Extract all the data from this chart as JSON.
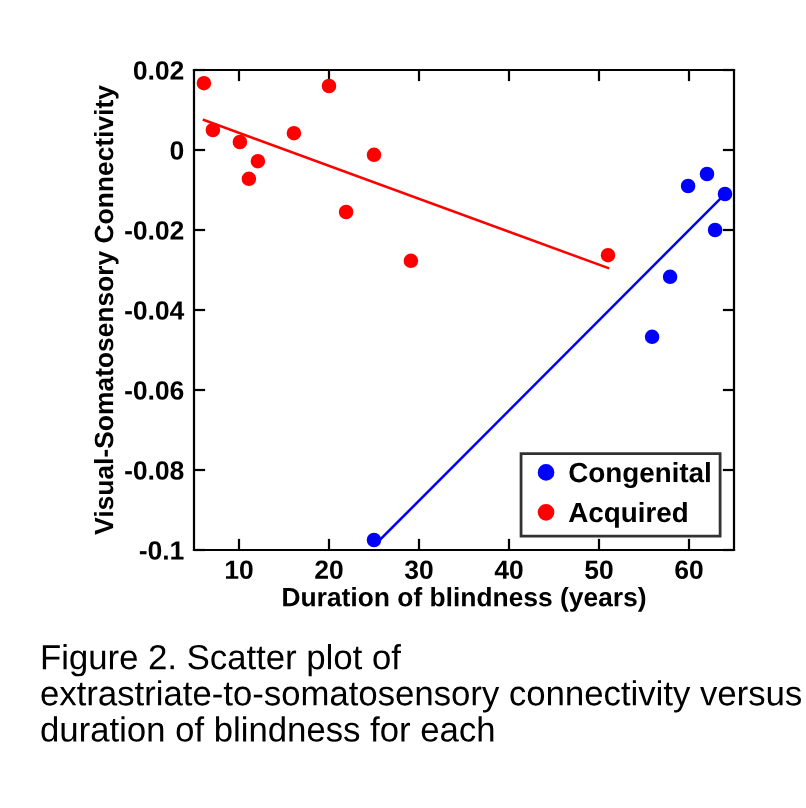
{
  "chart_data": {
    "type": "scatter",
    "xlabel": "Duration of blindness (years)",
    "ylabel": "Visual-Somatosensory Connectivity",
    "xlim": [
      5,
      65
    ],
    "ylim": [
      -0.1,
      0.02
    ],
    "xticks": [
      10,
      20,
      30,
      40,
      50,
      60
    ],
    "yticks": [
      0.02,
      0,
      -0.02,
      -0.04,
      -0.06,
      -0.08,
      -0.1
    ],
    "marker": "circle",
    "legend": "bottom right",
    "grid": false,
    "series": [
      {
        "name": "Congenital",
        "color": "#0000ff",
        "x": [
          25.0,
          55.9,
          57.9,
          59.9,
          62.0,
          62.9,
          64.0
        ],
        "values": [
          -0.0975,
          -0.0467,
          -0.0317,
          -0.009,
          -0.006,
          -0.02,
          -0.011
        ]
      },
      {
        "name": "Acquired",
        "color": "#ff0000",
        "x": [
          6.1,
          7.1,
          10.1,
          11.1,
          12.1,
          16.1,
          20.0,
          21.9,
          25.0,
          29.1,
          51.0
        ],
        "values": [
          0.0167,
          0.005,
          0.002,
          -0.0072,
          -0.0028,
          0.0042,
          0.016,
          -0.0155,
          -0.0012,
          -0.0277,
          -0.0263
        ]
      },
      {
        "type": "line",
        "marker": "none",
        "color": "#0000ff",
        "line_style": "solid",
        "x": [
          25.2,
          64.0
        ],
        "values": [
          -0.0985,
          -0.011
        ]
      },
      {
        "type": "line",
        "marker": "none",
        "color": "#ff0000",
        "line_style": "solid",
        "x": [
          6.1,
          51.0
        ],
        "values": [
          0.0075,
          -0.0295
        ]
      }
    ],
    "annotations": [
      "Figure 2. Scatter plot of extrastriate-to-somatosensory connectivity versus duration of blindness for each"
    ]
  }
}
